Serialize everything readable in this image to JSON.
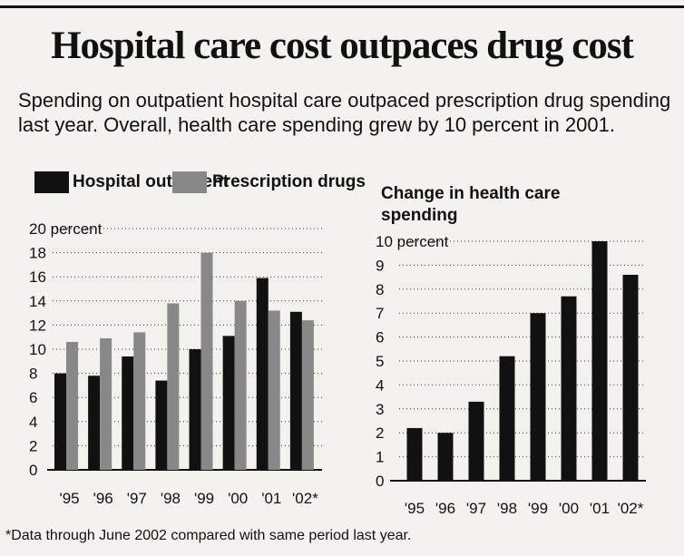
{
  "title": "Hospital care cost outpaces drug cost",
  "subtitle": "Spending on outpatient hospital care outpaced prescription drug spending last year. Overall, health care spending grew by 10 percent in 2001.",
  "footnote": "*Data through June 2002 compared with same period last year.",
  "colors": {
    "hospital_outpatient": "#111111",
    "prescription_drugs": "#888888",
    "change": "#111111"
  },
  "chart_data": [
    {
      "type": "bar",
      "title": "",
      "categories": [
        "'95",
        "'96",
        "'97",
        "'98",
        "'99",
        "'00",
        "'01",
        "'02*"
      ],
      "series": [
        {
          "name": "Hospital outpatient",
          "values": [
            8.0,
            7.8,
            9.4,
            7.4,
            10.0,
            11.1,
            15.9,
            13.1
          ]
        },
        {
          "name": "Prescription drugs",
          "values": [
            10.6,
            10.9,
            11.4,
            13.8,
            18.0,
            14.0,
            13.2,
            12.4
          ]
        }
      ],
      "yticks": [
        "20 percent",
        "18",
        "16",
        "14",
        "12",
        "10",
        "8",
        "6",
        "4",
        "2",
        "0"
      ],
      "ylim": [
        0,
        20
      ],
      "grid": true,
      "legend": "top"
    },
    {
      "type": "bar",
      "title": "Change in health care spending",
      "categories": [
        "'95",
        "'96",
        "'97",
        "'98",
        "'99",
        "'00",
        "'01",
        "'02*"
      ],
      "values": [
        2.2,
        2.0,
        3.3,
        5.2,
        7.0,
        7.7,
        10.0,
        8.6
      ],
      "yticks": [
        "10 percent",
        "9",
        "8",
        "7",
        "6",
        "5",
        "4",
        "3",
        "2",
        "1",
        "0"
      ],
      "ylim": [
        0,
        10
      ],
      "grid": true
    }
  ]
}
